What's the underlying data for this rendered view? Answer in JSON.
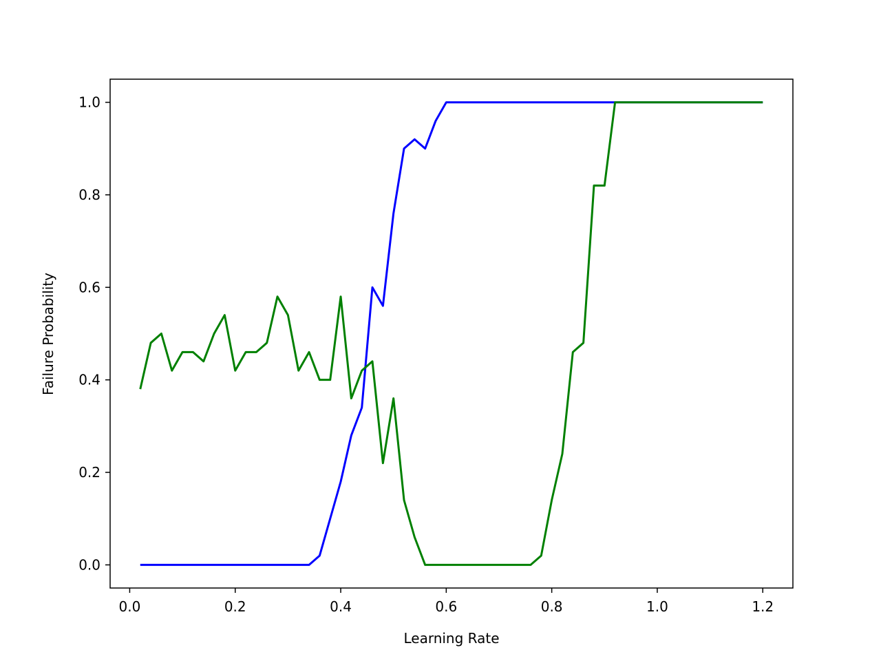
{
  "chart_data": {
    "type": "line",
    "title": "",
    "xlabel": "Learning Rate",
    "ylabel": "Failure Probability",
    "xlim": [
      -0.0371,
      1.2571
    ],
    "ylim": [
      -0.05,
      1.05
    ],
    "xticks": [
      0.0,
      0.2,
      0.4,
      0.6,
      0.8,
      1.0,
      1.2
    ],
    "xtick_labels": [
      "0.0",
      "0.2",
      "0.4",
      "0.6",
      "0.8",
      "1.0",
      "1.2"
    ],
    "yticks": [
      0.0,
      0.2,
      0.4,
      0.6,
      0.8,
      1.0
    ],
    "ytick_labels": [
      "0.0",
      "0.2",
      "0.4",
      "0.6",
      "0.8",
      "1.0"
    ],
    "grid": false,
    "legend": "none",
    "x": [
      0.02,
      0.04,
      0.06,
      0.08,
      0.1,
      0.12,
      0.14,
      0.16,
      0.18,
      0.2,
      0.22,
      0.24,
      0.26,
      0.28,
      0.3,
      0.32,
      0.34,
      0.36,
      0.38,
      0.4,
      0.42,
      0.44,
      0.46,
      0.48,
      0.5,
      0.52,
      0.54,
      0.56,
      0.58,
      0.6,
      0.62,
      0.64,
      0.66,
      0.68,
      0.7,
      0.72,
      0.74,
      0.76,
      0.78,
      0.8,
      0.82,
      0.84,
      0.86,
      0.88,
      0.9,
      0.92,
      0.94,
      0.96,
      0.98,
      1.0,
      1.02,
      1.04,
      1.06,
      1.08,
      1.1,
      1.12,
      1.14,
      1.16,
      1.18,
      1.2
    ],
    "series": [
      {
        "color": "#0000ff",
        "values": [
          0,
          0,
          0,
          0,
          0,
          0,
          0,
          0,
          0,
          0,
          0,
          0,
          0,
          0,
          0,
          0,
          0,
          0.02,
          0.1,
          0.18,
          0.28,
          0.34,
          0.6,
          0.56,
          0.76,
          0.9,
          0.92,
          0.9,
          0.96,
          1,
          1,
          1,
          1,
          1,
          1,
          1,
          1,
          1,
          1,
          1,
          1,
          1,
          1,
          1,
          1,
          1,
          1,
          1,
          1,
          1,
          1,
          1,
          1,
          1,
          1,
          1,
          1,
          1,
          1,
          1
        ]
      },
      {
        "color": "#008000",
        "values": [
          0.38,
          0.48,
          0.5,
          0.42,
          0.46,
          0.46,
          0.44,
          0.5,
          0.54,
          0.42,
          0.46,
          0.46,
          0.48,
          0.58,
          0.54,
          0.42,
          0.46,
          0.4,
          0.4,
          0.58,
          0.36,
          0.42,
          0.44,
          0.22,
          0.36,
          0.14,
          0.06,
          0,
          0,
          0,
          0,
          0,
          0,
          0,
          0,
          0,
          0,
          0,
          0.02,
          0.14,
          0.24,
          0.46,
          0.48,
          0.82,
          0.82,
          1,
          1,
          1,
          1,
          1,
          1,
          1,
          1,
          1,
          1,
          1,
          1,
          1,
          1,
          1
        ]
      }
    ]
  }
}
